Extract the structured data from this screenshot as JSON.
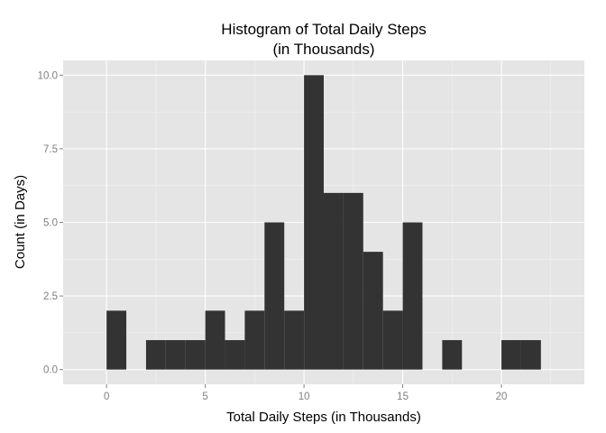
{
  "chart_data": {
    "type": "bar",
    "title_lines": [
      "Histogram of Total Daily Steps",
      "(in Thousands)"
    ],
    "xlabel": "Total Daily Steps (in Thousands)",
    "ylabel": "Count (in Days)",
    "bin_width": 1,
    "bins": [
      {
        "start": 0,
        "end": 1,
        "count": 2
      },
      {
        "start": 1,
        "end": 2,
        "count": 0
      },
      {
        "start": 2,
        "end": 3,
        "count": 1
      },
      {
        "start": 3,
        "end": 4,
        "count": 1
      },
      {
        "start": 4,
        "end": 5,
        "count": 1
      },
      {
        "start": 5,
        "end": 6,
        "count": 2
      },
      {
        "start": 6,
        "end": 7,
        "count": 1
      },
      {
        "start": 7,
        "end": 8,
        "count": 2
      },
      {
        "start": 8,
        "end": 9,
        "count": 5
      },
      {
        "start": 9,
        "end": 10,
        "count": 2
      },
      {
        "start": 10,
        "end": 11,
        "count": 10
      },
      {
        "start": 11,
        "end": 12,
        "count": 6
      },
      {
        "start": 12,
        "end": 13,
        "count": 6
      },
      {
        "start": 13,
        "end": 14,
        "count": 4
      },
      {
        "start": 14,
        "end": 15,
        "count": 2
      },
      {
        "start": 15,
        "end": 16,
        "count": 5
      },
      {
        "start": 16,
        "end": 17,
        "count": 0
      },
      {
        "start": 17,
        "end": 18,
        "count": 1
      },
      {
        "start": 18,
        "end": 19,
        "count": 0
      },
      {
        "start": 19,
        "end": 20,
        "count": 0
      },
      {
        "start": 20,
        "end": 21,
        "count": 1
      },
      {
        "start": 21,
        "end": 22,
        "count": 1
      }
    ],
    "xlim": [
      -2.2,
      24.2
    ],
    "ylim": [
      -0.5,
      10.5
    ],
    "x_ticks": [
      0,
      5,
      10,
      15,
      20
    ],
    "x_tick_labels": [
      "0",
      "5",
      "10",
      "15",
      "20"
    ],
    "y_ticks": [
      0,
      2.5,
      5,
      7.5,
      10
    ],
    "y_tick_labels": [
      "0.0",
      "2.5",
      "5.0",
      "7.5",
      "10.0"
    ],
    "grid": true,
    "legend": "none",
    "colors": {
      "panel": "#e5e5e5",
      "grid_major": "#ffffff",
      "grid_minor": "#f2f2f2",
      "bar_fill": "#333333",
      "tick_mark": "#7f7f7f"
    }
  }
}
